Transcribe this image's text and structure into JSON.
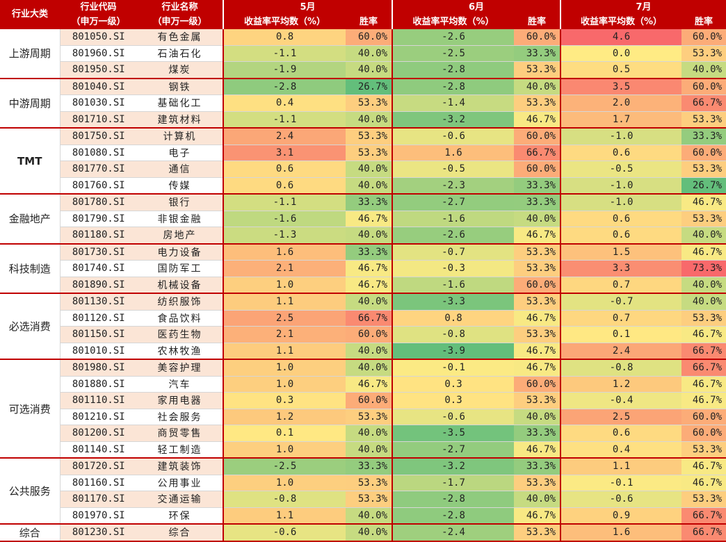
{
  "header": {
    "category": "行业大类",
    "code_l1": "行业代码",
    "code_l2": "（申万一级）",
    "name_l1": "行业名称",
    "name_l2": "（申万一级）",
    "months": [
      "5月",
      "6月",
      "7月"
    ],
    "ret_label": "收益率平均数（%）",
    "win_label": "胜率"
  },
  "colors": {
    "header_bg": "#c00000",
    "header_text": "#ffffff",
    "scale_low": "#63be7b",
    "scale_mid": "#ffeb84",
    "scale_high": "#f8696b",
    "row_stripe": "#fbe5d6"
  },
  "groups": [
    {
      "category": "上游周期",
      "rows": [
        {
          "code": "801050.SI",
          "name": "有色金属",
          "m": [
            [
              "0.8",
              "60.0%"
            ],
            [
              "-2.6",
              "60.0%"
            ],
            [
              "4.6",
              "60.0%"
            ]
          ]
        },
        {
          "code": "801960.SI",
          "name": "石油石化",
          "m": [
            [
              "-1.1",
              "40.0%"
            ],
            [
              "-2.5",
              "33.3%"
            ],
            [
              "0.0",
              "53.3%"
            ]
          ]
        },
        {
          "code": "801950.SI",
          "name": "煤炭",
          "m": [
            [
              "-1.9",
              "40.0%"
            ],
            [
              "-2.8",
              "53.3%"
            ],
            [
              "0.5",
              "40.0%"
            ]
          ]
        }
      ]
    },
    {
      "category": "中游周期",
      "rows": [
        {
          "code": "801040.SI",
          "name": "钢铁",
          "m": [
            [
              "-2.8",
              "26.7%"
            ],
            [
              "-2.8",
              "40.0%"
            ],
            [
              "3.5",
              "60.0%"
            ]
          ]
        },
        {
          "code": "801030.SI",
          "name": "基础化工",
          "m": [
            [
              "0.4",
              "53.3%"
            ],
            [
              "-1.4",
              "53.3%"
            ],
            [
              "2.0",
              "66.7%"
            ]
          ]
        },
        {
          "code": "801710.SI",
          "name": "建筑材料",
          "m": [
            [
              "-1.1",
              "40.0%"
            ],
            [
              "-3.2",
              "46.7%"
            ],
            [
              "1.7",
              "53.3%"
            ]
          ]
        }
      ]
    },
    {
      "category": "TMT",
      "bold": true,
      "rows": [
        {
          "code": "801750.SI",
          "name": "计算机",
          "m": [
            [
              "2.4",
              "53.3%"
            ],
            [
              "-0.6",
              "60.0%"
            ],
            [
              "-1.0",
              "33.3%"
            ]
          ]
        },
        {
          "code": "801080.SI",
          "name": "电子",
          "m": [
            [
              "3.1",
              "53.3%"
            ],
            [
              "1.6",
              "66.7%"
            ],
            [
              "0.6",
              "60.0%"
            ]
          ]
        },
        {
          "code": "801770.SI",
          "name": "通信",
          "m": [
            [
              "0.6",
              "40.0%"
            ],
            [
              "-0.5",
              "60.0%"
            ],
            [
              "-0.5",
              "53.3%"
            ]
          ]
        },
        {
          "code": "801760.SI",
          "name": "传媒",
          "m": [
            [
              "0.6",
              "40.0%"
            ],
            [
              "-2.3",
              "33.3%"
            ],
            [
              "-1.0",
              "26.7%"
            ]
          ]
        }
      ]
    },
    {
      "category": "金融地产",
      "rows": [
        {
          "code": "801780.SI",
          "name": "银行",
          "m": [
            [
              "-1.1",
              "33.3%"
            ],
            [
              "-2.7",
              "33.3%"
            ],
            [
              "-1.0",
              "46.7%"
            ]
          ]
        },
        {
          "code": "801790.SI",
          "name": "非银金融",
          "m": [
            [
              "-1.6",
              "46.7%"
            ],
            [
              "-1.6",
              "40.0%"
            ],
            [
              "0.6",
              "53.3%"
            ]
          ]
        },
        {
          "code": "801180.SI",
          "name": "房地产",
          "m": [
            [
              "-1.3",
              "40.0%"
            ],
            [
              "-2.6",
              "46.7%"
            ],
            [
              "0.6",
              "40.0%"
            ]
          ]
        }
      ]
    },
    {
      "category": "科技制造",
      "rows": [
        {
          "code": "801730.SI",
          "name": "电力设备",
          "m": [
            [
              "1.6",
              "33.3%"
            ],
            [
              "-0.7",
              "53.3%"
            ],
            [
              "1.5",
              "46.7%"
            ]
          ]
        },
        {
          "code": "801740.SI",
          "name": "国防军工",
          "m": [
            [
              "2.1",
              "46.7%"
            ],
            [
              "-0.3",
              "53.3%"
            ],
            [
              "3.3",
              "73.3%"
            ]
          ]
        },
        {
          "code": "801890.SI",
          "name": "机械设备",
          "m": [
            [
              "1.0",
              "46.7%"
            ],
            [
              "-1.6",
              "60.0%"
            ],
            [
              "0.7",
              "40.0%"
            ]
          ]
        }
      ]
    },
    {
      "category": "必选消费",
      "rows": [
        {
          "code": "801130.SI",
          "name": "纺织服饰",
          "m": [
            [
              "1.1",
              "40.0%"
            ],
            [
              "-3.3",
              "53.3%"
            ],
            [
              "-0.7",
              "40.0%"
            ]
          ]
        },
        {
          "code": "801120.SI",
          "name": "食品饮料",
          "m": [
            [
              "2.5",
              "66.7%"
            ],
            [
              "0.8",
              "46.7%"
            ],
            [
              "0.7",
              "53.3%"
            ]
          ]
        },
        {
          "code": "801150.SI",
          "name": "医药生物",
          "m": [
            [
              "2.1",
              "60.0%"
            ],
            [
              "-0.8",
              "53.3%"
            ],
            [
              "0.1",
              "46.7%"
            ]
          ]
        },
        {
          "code": "801010.SI",
          "name": "农林牧渔",
          "m": [
            [
              "1.1",
              "40.0%"
            ],
            [
              "-3.9",
              "46.7%"
            ],
            [
              "2.4",
              "66.7%"
            ]
          ]
        }
      ]
    },
    {
      "category": "可选消费",
      "rows": [
        {
          "code": "801980.SI",
          "name": "美容护理",
          "m": [
            [
              "1.0",
              "40.0%"
            ],
            [
              "-0.1",
              "46.7%"
            ],
            [
              "-0.8",
              "66.7%"
            ]
          ]
        },
        {
          "code": "801880.SI",
          "name": "汽车",
          "m": [
            [
              "1.0",
              "46.7%"
            ],
            [
              "0.3",
              "60.0%"
            ],
            [
              "1.2",
              "46.7%"
            ]
          ]
        },
        {
          "code": "801110.SI",
          "name": "家用电器",
          "m": [
            [
              "0.3",
              "60.0%"
            ],
            [
              "0.3",
              "53.3%"
            ],
            [
              "-0.4",
              "46.7%"
            ]
          ]
        },
        {
          "code": "801210.SI",
          "name": "社会服务",
          "m": [
            [
              "1.2",
              "53.3%"
            ],
            [
              "-0.6",
              "40.0%"
            ],
            [
              "2.5",
              "60.0%"
            ]
          ]
        },
        {
          "code": "801200.SI",
          "name": "商贸零售",
          "m": [
            [
              "0.1",
              "40.0%"
            ],
            [
              "-3.5",
              "33.3%"
            ],
            [
              "0.6",
              "60.0%"
            ]
          ]
        },
        {
          "code": "801140.SI",
          "name": "轻工制造",
          "m": [
            [
              "1.0",
              "40.0%"
            ],
            [
              "-2.7",
              "46.7%"
            ],
            [
              "0.4",
              "53.3%"
            ]
          ]
        }
      ]
    },
    {
      "category": "公共服务",
      "rows": [
        {
          "code": "801720.SI",
          "name": "建筑装饰",
          "m": [
            [
              "-2.5",
              "33.3%"
            ],
            [
              "-3.2",
              "33.3%"
            ],
            [
              "1.1",
              "46.7%"
            ]
          ]
        },
        {
          "code": "801160.SI",
          "name": "公用事业",
          "m": [
            [
              "1.0",
              "53.3%"
            ],
            [
              "-1.7",
              "53.3%"
            ],
            [
              "-0.1",
              "46.7%"
            ]
          ]
        },
        {
          "code": "801170.SI",
          "name": "交通运输",
          "m": [
            [
              "-0.8",
              "53.3%"
            ],
            [
              "-2.8",
              "40.0%"
            ],
            [
              "-0.6",
              "53.3%"
            ]
          ]
        },
        {
          "code": "801970.SI",
          "name": "环保",
          "m": [
            [
              "1.1",
              "40.0%"
            ],
            [
              "-2.8",
              "46.7%"
            ],
            [
              "0.9",
              "66.7%"
            ]
          ]
        }
      ]
    },
    {
      "category": "综合",
      "rows": [
        {
          "code": "801230.SI",
          "name": "综合",
          "m": [
            [
              "-0.6",
              "40.0%"
            ],
            [
              "-2.4",
              "53.3%"
            ],
            [
              "1.6",
              "66.7%"
            ]
          ]
        }
      ]
    }
  ]
}
